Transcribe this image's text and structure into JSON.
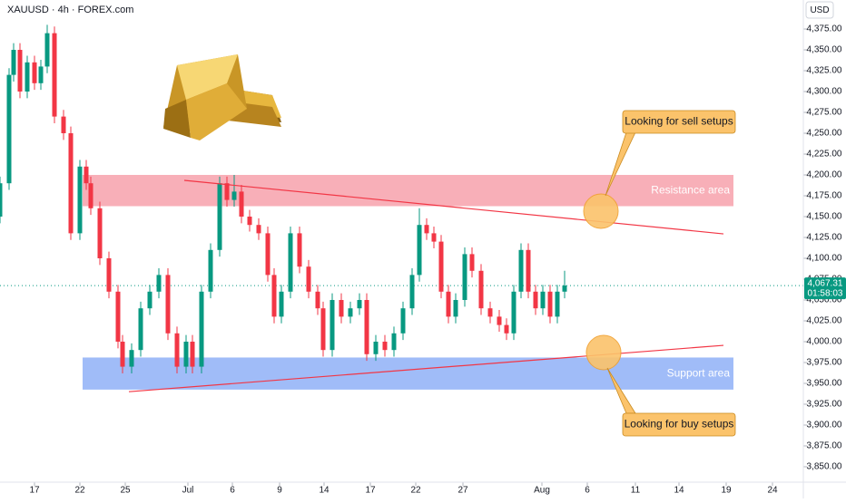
{
  "chart_data": {
    "type": "candlestick",
    "title": "XAUUSD · 4h · FOREX.com",
    "currency": "USD",
    "x": [
      0,
      10,
      15,
      22,
      30,
      38,
      45,
      52,
      60,
      70,
      78,
      88,
      95,
      100,
      110,
      120,
      130,
      135,
      145,
      155,
      165,
      175,
      185,
      195,
      205,
      212,
      222,
      232,
      242,
      250,
      258,
      266,
      275,
      285,
      295,
      302,
      310,
      320,
      330,
      340,
      350,
      356,
      366,
      376,
      386,
      396,
      404,
      414,
      424,
      434,
      444,
      454,
      462,
      470,
      478,
      486,
      494,
      502,
      512,
      520,
      530,
      540,
      550,
      558,
      566,
      574,
      582,
      590,
      598,
      606,
      614,
      622
    ],
    "open": [
      4150,
      4190,
      4320,
      4350,
      4300,
      4335,
      4310,
      4330,
      4370,
      4270,
      4250,
      4130,
      4210,
      4190,
      4160,
      4100,
      4060,
      4000,
      3970,
      3990,
      4040,
      4060,
      4080,
      4010,
      3970,
      4000,
      3970,
      4060,
      4110,
      4190,
      4170,
      4180,
      4150,
      4140,
      4130,
      4080,
      4030,
      4060,
      4130,
      4090,
      4060,
      4040,
      3990,
      4050,
      4030,
      4040,
      4050,
      3985,
      4000,
      3990,
      4010,
      4040,
      4080,
      4140,
      4130,
      4120,
      4060,
      4030,
      4050,
      4105,
      4085,
      4040,
      4030,
      4020,
      4010,
      4060,
      4110,
      4060,
      4040,
      4060,
      4030,
      4060
    ],
    "high": [
      4198,
      4328,
      4358,
      4358,
      4343,
      4343,
      4338,
      4380,
      4378,
      4278,
      4258,
      4218,
      4218,
      4198,
      4168,
      4108,
      4068,
      4008,
      3998,
      4048,
      4068,
      4088,
      4088,
      4018,
      4008,
      4008,
      4068,
      4118,
      4198,
      4198,
      4200,
      4188,
      4158,
      4148,
      4138,
      4088,
      4068,
      4138,
      4138,
      4098,
      4068,
      4048,
      4058,
      4058,
      4048,
      4058,
      4058,
      4008,
      4008,
      4018,
      4048,
      4088,
      4160,
      4148,
      4138,
      4128,
      4068,
      4058,
      4113,
      4113,
      4093,
      4048,
      4038,
      4028,
      4068,
      4118,
      4118,
      4068,
      4068,
      4068,
      4068,
      4085
    ],
    "low": [
      4142,
      4182,
      4312,
      4292,
      4292,
      4302,
      4302,
      4322,
      4262,
      4242,
      4122,
      4122,
      4182,
      4152,
      4092,
      4052,
      3992,
      3962,
      3962,
      3982,
      4032,
      4052,
      4002,
      3962,
      3962,
      3962,
      3962,
      4052,
      4102,
      4162,
      4162,
      4142,
      4132,
      4122,
      4072,
      4022,
      4022,
      4052,
      4082,
      4052,
      4032,
      3982,
      3982,
      4022,
      4022,
      4032,
      3977,
      3977,
      3982,
      3982,
      4002,
      4032,
      4072,
      4122,
      4112,
      4052,
      4022,
      4022,
      4042,
      4077,
      4032,
      4022,
      4012,
      4002,
      4002,
      4052,
      4052,
      4032,
      4032,
      4022,
      4022,
      4052
    ],
    "close": [
      4190,
      4320,
      4350,
      4300,
      4335,
      4310,
      4330,
      4370,
      4270,
      4250,
      4130,
      4210,
      4190,
      4160,
      4100,
      4060,
      4000,
      3970,
      3990,
      4040,
      4060,
      4080,
      4010,
      3970,
      4000,
      3970,
      4060,
      4110,
      4190,
      4170,
      4180,
      4150,
      4140,
      4130,
      4080,
      4030,
      4060,
      4130,
      4090,
      4060,
      4040,
      3990,
      4050,
      4030,
      4040,
      4050,
      3985,
      4000,
      3990,
      4010,
      4040,
      4080,
      4140,
      4130,
      4120,
      4060,
      4030,
      4050,
      4105,
      4085,
      4040,
      4030,
      4020,
      4010,
      4060,
      4110,
      4060,
      4040,
      4060,
      4030,
      4060,
      4067.31
    ],
    "up_color": "#089981",
    "down_color": "#f23645",
    "xlim": [
      0,
      885
    ],
    "xticks": [
      {
        "value": 38,
        "label": "17"
      },
      {
        "value": 88,
        "label": "22"
      },
      {
        "value": 138,
        "label": "25"
      },
      {
        "value": 207,
        "label": "Jul"
      },
      {
        "value": 256,
        "label": "6"
      },
      {
        "value": 308,
        "label": "9"
      },
      {
        "value": 357,
        "label": "14"
      },
      {
        "value": 408,
        "label": "17"
      },
      {
        "value": 458,
        "label": "22"
      },
      {
        "value": 510,
        "label": "27"
      },
      {
        "value": 597,
        "label": "Aug"
      },
      {
        "value": 647,
        "label": "6"
      },
      {
        "value": 700,
        "label": "11"
      },
      {
        "value": 748,
        "label": "14"
      },
      {
        "value": 800,
        "label": "19"
      },
      {
        "value": 851,
        "label": "24"
      }
    ],
    "ylim": [
      3831.5,
      4409.8
    ],
    "yticks": [
      {
        "value": 3850,
        "label": "3,850.00"
      },
      {
        "value": 3875,
        "label": "3,875.00"
      },
      {
        "value": 3900,
        "label": "3,900.00"
      },
      {
        "value": 3925,
        "label": "3,925.00"
      },
      {
        "value": 3950,
        "label": "3,950.00"
      },
      {
        "value": 3975,
        "label": "3,975.00"
      },
      {
        "value": 4000,
        "label": "4,000.00"
      },
      {
        "value": 4025,
        "label": "4,025.00"
      },
      {
        "value": 4050,
        "label": "4,050.00"
      },
      {
        "value": 4075,
        "label": "4,075.00"
      },
      {
        "value": 4100,
        "label": "4,100.00"
      },
      {
        "value": 4125,
        "label": "4,125.00"
      },
      {
        "value": 4150,
        "label": "4,150.00"
      },
      {
        "value": 4175,
        "label": "4,175.00"
      },
      {
        "value": 4200,
        "label": "4,200.00"
      },
      {
        "value": 4225,
        "label": "4,225.00"
      },
      {
        "value": 4250,
        "label": "4,250.00"
      },
      {
        "value": 4275,
        "label": "4,275.00"
      },
      {
        "value": 4300,
        "label": "4,300.00"
      },
      {
        "value": 4325,
        "label": "4,325.00"
      },
      {
        "value": 4350,
        "label": "4,350.00"
      },
      {
        "value": 4375,
        "label": "4,375.00"
      }
    ],
    "last_price": {
      "value": 4067.31,
      "label": "4,067.31"
    },
    "countdown": "01:58:03",
    "zones": [
      {
        "name": "Resistance area",
        "range": [
          4162.5,
          4200
        ],
        "xrange": [
          91,
          808
        ],
        "color": "#f7a1ab"
      },
      {
        "name": "Support area",
        "range": [
          3942.5,
          3981
        ],
        "xrange": [
          91,
          808
        ],
        "color": "#8fb0f7"
      }
    ],
    "trendlines": [
      {
        "x": [
          203,
          797
        ],
        "y": [
          4193.5,
          4129.3
        ],
        "color": "#f23645"
      },
      {
        "x": [
          142,
          797
        ],
        "y": [
          3940,
          3995.6
        ],
        "color": "#f23645"
      }
    ],
    "callouts": [
      "Looking for sell setups",
      "Looking for buy setups"
    ]
  }
}
